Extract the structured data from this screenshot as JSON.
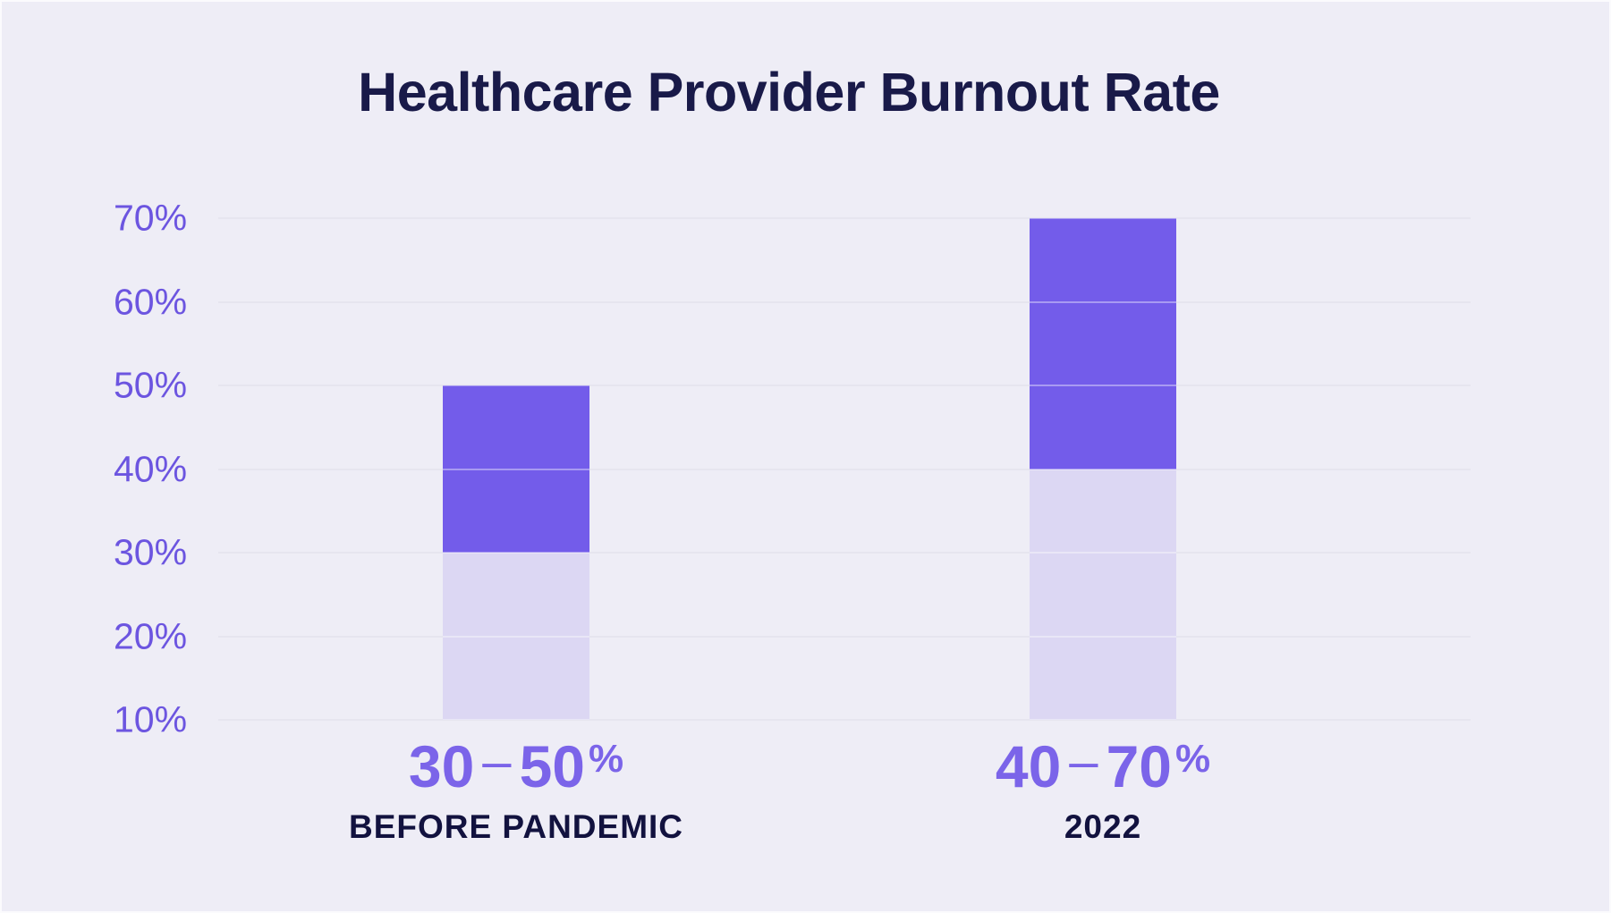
{
  "chart_data": {
    "type": "bar",
    "title": "Healthcare Provider Burnout Rate",
    "subtitle": "",
    "xlabel": "",
    "ylabel": "",
    "legend": false,
    "grid": true,
    "bar_style": "floating range bars; saturated segment covers the value range, faded segment fills from range bottom down to axis baseline",
    "y_axis": {
      "min": 10,
      "max": 70,
      "tick_step": 10,
      "ticks": [
        70,
        60,
        50,
        40,
        30,
        20,
        10
      ],
      "tick_suffix": "%"
    },
    "bars": [
      {
        "category": "BEFORE PANDEMIC",
        "low": 30,
        "high": 50,
        "display": "30–50%",
        "range_label": {
          "from": "30",
          "separator": "–",
          "to": "50",
          "suffix": "%"
        }
      },
      {
        "category": "2022",
        "low": 40,
        "high": 70,
        "display": "40–70%",
        "range_label": {
          "from": "40",
          "separator": "–",
          "to": "70",
          "suffix": "%"
        }
      }
    ],
    "colors": {
      "background": "#eeedf6",
      "bar_fill": "#735cea",
      "bar_fill_faded": "#dcd7f3",
      "gridline": "#d7d5e6",
      "axis_tick_label": "#6c55e0",
      "range_value_label": "#7b64e9",
      "category_label": "#12123f",
      "title": "#191a49"
    }
  }
}
